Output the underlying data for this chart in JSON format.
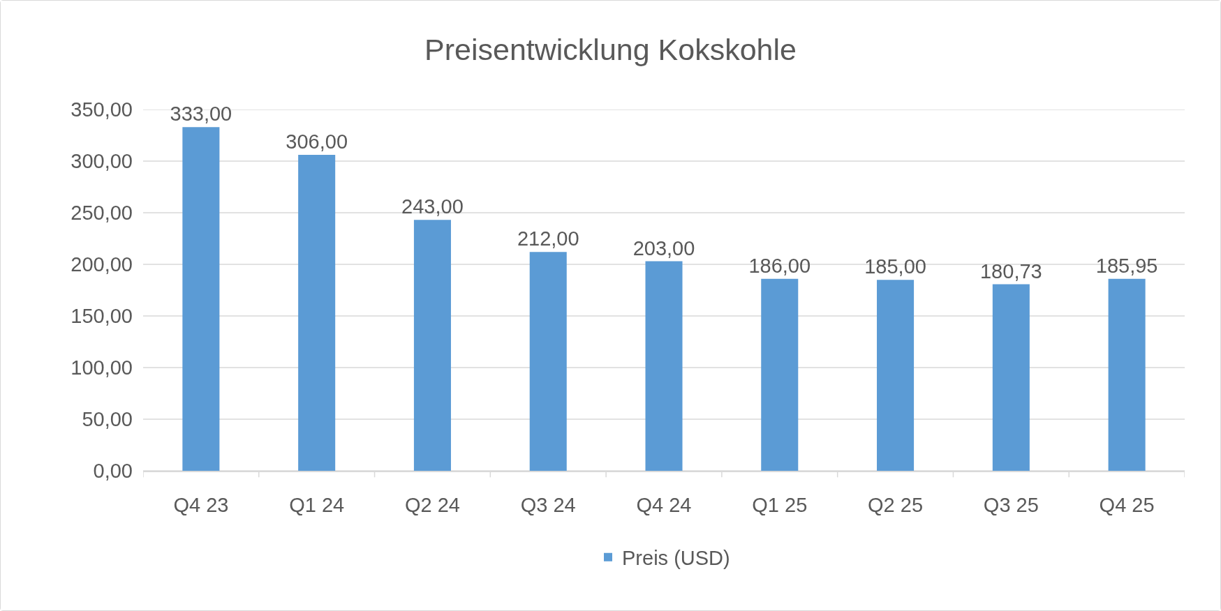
{
  "chart_data": {
    "type": "bar",
    "title": "Preisentwicklung Kokskohle",
    "categories": [
      "Q4 23",
      "Q1 24",
      "Q2 24",
      "Q3 24",
      "Q4 24",
      "Q1 25",
      "Q2 25",
      "Q3 25",
      "Q4 25"
    ],
    "series": [
      {
        "name": "Preis (USD)",
        "color": "#5b9bd5",
        "values": [
          333,
          306,
          243,
          212,
          203,
          186,
          185,
          180.73,
          185.95
        ],
        "value_labels": [
          "333,00",
          "306,00",
          "243,00",
          "212,00",
          "203,00",
          "186,00",
          "185,00",
          "180,73",
          "185,95"
        ]
      }
    ],
    "ylim": [
      0,
      350
    ],
    "yticks": [
      {
        "value": 0,
        "label": "0,00"
      },
      {
        "value": 50,
        "label": "50,00"
      },
      {
        "value": 100,
        "label": "100,00"
      },
      {
        "value": 150,
        "label": "150,00"
      },
      {
        "value": 200,
        "label": "200,00"
      },
      {
        "value": 250,
        "label": "250,00"
      },
      {
        "value": 300,
        "label": "300,00"
      },
      {
        "value": 350,
        "label": "350,00"
      }
    ],
    "grid": "y",
    "legend": "bottom"
  }
}
